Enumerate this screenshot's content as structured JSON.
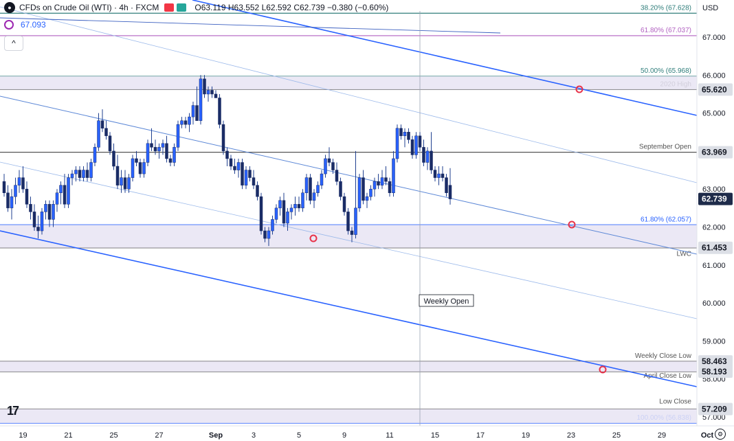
{
  "header": {
    "title": "CFDs on Crude Oil (WTI) · 4h · FXCM",
    "open": "O63.119",
    "high": "H63.552",
    "low": "L62.592",
    "close": "C62.739",
    "change": "−0.380 (−0.60%)"
  },
  "indicator": {
    "value": "67.093"
  },
  "collapse_label": "^",
  "currency": "USD",
  "logo_text": "17",
  "chart_data": {
    "type": "candlestick",
    "symbol": "CFDs on Crude Oil (WTI)",
    "timeframe": "4h",
    "source": "FXCM",
    "ylim": [
      56.7,
      67.9
    ],
    "y_ticks": [
      "67.000",
      "66.000",
      "65.000",
      "63.000",
      "62.000",
      "61.000",
      "60.000",
      "59.000",
      "58.000",
      "57.000"
    ],
    "x_ticks": [
      {
        "label": "19",
        "i": 5
      },
      {
        "label": "21",
        "i": 17
      },
      {
        "label": "25",
        "i": 29
      },
      {
        "label": "27",
        "i": 41
      },
      {
        "label": "Sep",
        "i": 56
      },
      {
        "label": "3",
        "i": 66
      },
      {
        "label": "5",
        "i": 78
      },
      {
        "label": "9",
        "i": 90
      },
      {
        "label": "11",
        "i": 102
      },
      {
        "label": "15",
        "i": 114
      },
      {
        "label": "17",
        "i": 126
      },
      {
        "label": "19",
        "i": 138
      },
      {
        "label": "23",
        "i": 150
      },
      {
        "label": "25",
        "i": 162
      },
      {
        "label": "29",
        "i": 174
      },
      {
        "label": "Oct",
        "i": 186
      }
    ],
    "price_badges": [
      {
        "value": "65.620",
        "price": 65.62,
        "style": "gray"
      },
      {
        "value": "63.969",
        "price": 63.969,
        "style": "gray"
      },
      {
        "value": "62.739",
        "price": 62.739,
        "style": "dark"
      },
      {
        "value": "61.453",
        "price": 61.453,
        "style": "gray"
      },
      {
        "value": "58.463",
        "price": 58.463,
        "style": "gray"
      },
      {
        "value": "58.193",
        "price": 58.193,
        "style": "gray"
      },
      {
        "value": "57.209",
        "price": 57.209,
        "style": "gray"
      }
    ],
    "levels": [
      {
        "label": "38.20% (67.628)",
        "price": 67.628,
        "color": "#2e7d7a"
      },
      {
        "label": "61.80% (67.037)",
        "price": 67.037,
        "color": "#b05fc0"
      },
      {
        "label": "50.00% (65.968)",
        "price": 65.968,
        "color": "#2e7d7a"
      },
      {
        "label": "2020 High",
        "price": 65.62,
        "color": "#555555"
      },
      {
        "label": "September Open",
        "price": 63.969,
        "color": "#555555"
      },
      {
        "label": "61.80% (62.057)",
        "price": 62.057,
        "color": "#2962ff"
      },
      {
        "label": "LWC",
        "price": 61.453,
        "color": "#555555"
      },
      {
        "label": "Weekly Close Low",
        "price": 58.463,
        "color": "#555555"
      },
      {
        "label": "April Close Low",
        "price": 58.193,
        "color": "#555555"
      },
      {
        "label": "Low Close",
        "price": 57.209,
        "color": "#555555"
      },
      {
        "label": "100.00% (56.838)",
        "price": 56.838,
        "color": "#2962ff"
      }
    ],
    "annotations": [
      {
        "label": "Weekly Open"
      }
    ],
    "series": [
      {
        "name": "Crude Oil (WTI) 4h",
        "ohlc": [
          [
            63.2,
            63.4,
            62.8,
            62.9
          ],
          [
            62.9,
            63.1,
            62.4,
            62.5
          ],
          [
            62.5,
            63.0,
            62.2,
            62.8
          ],
          [
            62.8,
            63.3,
            62.6,
            63.1
          ],
          [
            63.1,
            63.5,
            62.9,
            63.3
          ],
          [
            63.3,
            63.6,
            62.9,
            63.0
          ],
          [
            63.0,
            63.2,
            62.5,
            62.6
          ],
          [
            62.6,
            62.8,
            62.2,
            62.4
          ],
          [
            62.4,
            62.6,
            61.9,
            62.0
          ],
          [
            62.0,
            62.3,
            61.7,
            61.9
          ],
          [
            61.9,
            62.5,
            61.8,
            62.4
          ],
          [
            62.4,
            62.7,
            62.2,
            62.6
          ],
          [
            62.6,
            62.7,
            62.0,
            62.2
          ],
          [
            62.2,
            62.7,
            62.0,
            62.6
          ],
          [
            62.6,
            63.0,
            62.4,
            62.9
          ],
          [
            62.9,
            63.2,
            62.6,
            63.1
          ],
          [
            63.1,
            63.4,
            62.5,
            62.6
          ],
          [
            62.6,
            63.4,
            62.5,
            63.3
          ],
          [
            63.3,
            63.5,
            63.1,
            63.4
          ],
          [
            63.4,
            63.6,
            63.2,
            63.5
          ],
          [
            63.5,
            63.6,
            63.2,
            63.3
          ],
          [
            63.3,
            63.6,
            63.2,
            63.5
          ],
          [
            63.5,
            63.7,
            63.2,
            63.3
          ],
          [
            63.3,
            63.8,
            63.2,
            63.7
          ],
          [
            63.7,
            64.2,
            63.6,
            64.1
          ],
          [
            64.1,
            65.0,
            64.0,
            64.8
          ],
          [
            64.8,
            65.1,
            64.5,
            64.6
          ],
          [
            64.6,
            64.8,
            64.3,
            64.4
          ],
          [
            64.4,
            64.5,
            63.9,
            64.0
          ],
          [
            64.0,
            64.2,
            63.5,
            63.6
          ],
          [
            63.6,
            63.9,
            63.0,
            63.1
          ],
          [
            63.1,
            63.5,
            62.9,
            63.3
          ],
          [
            63.3,
            63.5,
            62.9,
            63.0
          ],
          [
            63.0,
            63.4,
            62.9,
            63.3
          ],
          [
            63.3,
            63.9,
            63.2,
            63.8
          ],
          [
            63.8,
            64.0,
            63.6,
            63.7
          ],
          [
            63.7,
            63.8,
            63.3,
            63.4
          ],
          [
            63.4,
            63.8,
            63.3,
            63.7
          ],
          [
            63.7,
            64.3,
            63.6,
            64.2
          ],
          [
            64.2,
            64.6,
            64.0,
            64.1
          ],
          [
            64.1,
            64.3,
            63.9,
            64.0
          ],
          [
            64.0,
            64.2,
            63.8,
            64.1
          ],
          [
            64.1,
            64.3,
            63.9,
            64.2
          ],
          [
            64.2,
            64.4,
            63.7,
            63.8
          ],
          [
            63.8,
            63.9,
            63.6,
            63.7
          ],
          [
            63.7,
            64.2,
            63.6,
            64.1
          ],
          [
            64.1,
            64.8,
            64.0,
            64.7
          ],
          [
            64.7,
            64.9,
            64.6,
            64.8
          ],
          [
            64.8,
            64.9,
            64.6,
            64.7
          ],
          [
            64.7,
            65.0,
            64.5,
            64.9
          ],
          [
            64.9,
            65.3,
            64.7,
            65.2
          ],
          [
            65.2,
            65.7,
            64.8,
            64.8
          ],
          [
            64.8,
            66.0,
            64.7,
            65.9
          ],
          [
            65.9,
            66.0,
            65.4,
            65.5
          ],
          [
            65.5,
            65.7,
            65.3,
            65.6
          ],
          [
            65.6,
            65.7,
            65.4,
            65.5
          ],
          [
            65.5,
            65.6,
            65.4,
            65.4
          ],
          [
            65.4,
            65.5,
            64.6,
            64.7
          ],
          [
            64.7,
            64.8,
            63.9,
            64.0
          ],
          [
            64.0,
            64.1,
            63.6,
            63.8
          ],
          [
            63.8,
            63.9,
            63.5,
            63.6
          ],
          [
            63.6,
            63.8,
            63.4,
            63.5
          ],
          [
            63.5,
            63.8,
            63.3,
            63.7
          ],
          [
            63.7,
            63.8,
            63.0,
            63.1
          ],
          [
            63.1,
            63.6,
            63.0,
            63.5
          ],
          [
            63.5,
            63.6,
            63.2,
            63.3
          ],
          [
            63.3,
            63.5,
            63.0,
            63.1
          ],
          [
            63.1,
            63.2,
            62.7,
            62.8
          ],
          [
            62.8,
            62.9,
            61.8,
            61.9
          ],
          [
            61.9,
            62.0,
            61.6,
            61.7
          ],
          [
            61.7,
            62.0,
            61.5,
            61.9
          ],
          [
            61.9,
            62.3,
            61.8,
            62.2
          ],
          [
            62.2,
            62.6,
            62.1,
            62.5
          ],
          [
            62.5,
            62.8,
            62.3,
            62.7
          ],
          [
            62.7,
            62.9,
            62.0,
            62.1
          ],
          [
            62.1,
            62.5,
            61.9,
            62.4
          ],
          [
            62.4,
            62.6,
            62.2,
            62.5
          ],
          [
            62.5,
            62.8,
            62.3,
            62.6
          ],
          [
            62.6,
            62.8,
            62.4,
            62.5
          ],
          [
            62.5,
            63.0,
            62.4,
            62.9
          ],
          [
            62.9,
            63.4,
            62.7,
            63.3
          ],
          [
            63.3,
            63.4,
            62.6,
            62.7
          ],
          [
            62.7,
            63.0,
            62.5,
            62.9
          ],
          [
            62.9,
            63.2,
            62.8,
            63.1
          ],
          [
            63.1,
            63.5,
            63.0,
            63.4
          ],
          [
            63.4,
            63.9,
            63.3,
            63.8
          ],
          [
            63.8,
            64.1,
            63.6,
            63.7
          ],
          [
            63.7,
            63.8,
            63.4,
            63.5
          ],
          [
            63.5,
            63.7,
            63.1,
            63.2
          ],
          [
            63.2,
            63.3,
            62.7,
            62.8
          ],
          [
            62.8,
            62.9,
            62.3,
            62.4
          ],
          [
            62.4,
            62.5,
            61.8,
            61.9
          ],
          [
            61.9,
            62.0,
            61.6,
            61.8
          ],
          [
            61.8,
            64.0,
            61.7,
            62.5
          ],
          [
            62.5,
            63.4,
            62.4,
            63.3
          ],
          [
            63.3,
            63.5,
            62.6,
            62.7
          ],
          [
            62.7,
            62.9,
            62.5,
            62.8
          ],
          [
            62.8,
            63.1,
            62.7,
            63.0
          ],
          [
            63.0,
            63.3,
            62.8,
            63.2
          ],
          [
            63.2,
            63.4,
            63.0,
            63.1
          ],
          [
            63.1,
            63.5,
            63.0,
            63.3
          ],
          [
            63.3,
            63.6,
            63.1,
            63.2
          ],
          [
            63.2,
            63.3,
            62.8,
            62.9
          ],
          [
            62.9,
            64.0,
            62.8,
            63.8
          ],
          [
            63.8,
            64.7,
            63.7,
            64.6
          ],
          [
            64.6,
            64.7,
            64.3,
            64.4
          ],
          [
            64.4,
            64.6,
            64.1,
            64.5
          ],
          [
            64.5,
            64.6,
            64.2,
            64.3
          ],
          [
            64.3,
            64.4,
            63.8,
            63.9
          ],
          [
            63.9,
            64.5,
            63.8,
            64.4
          ],
          [
            64.4,
            64.5,
            64.0,
            64.1
          ],
          [
            64.1,
            64.3,
            63.6,
            63.7
          ],
          [
            63.7,
            64.1,
            63.5,
            64.0
          ],
          [
            64.0,
            64.5,
            63.4,
            63.5
          ],
          [
            63.5,
            63.6,
            63.2,
            63.3
          ],
          [
            63.3,
            63.6,
            63.1,
            63.4
          ],
          [
            63.4,
            63.6,
            63.2,
            63.3
          ],
          [
            63.3,
            63.4,
            62.8,
            62.9
          ],
          [
            63.1,
            63.55,
            62.59,
            62.74
          ]
        ]
      }
    ]
  }
}
